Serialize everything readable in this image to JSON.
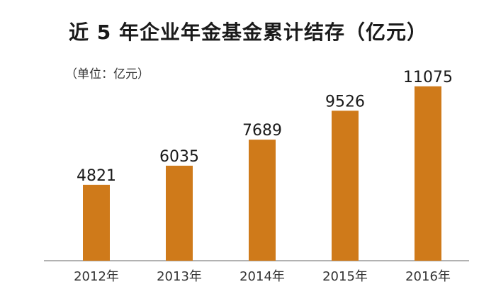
{
  "chart_data": {
    "type": "bar",
    "title": "近 5 年企业年金基金累计结存（亿元）",
    "unit_label": "（单位：亿元）",
    "categories": [
      "2012年",
      "2013年",
      "2014年",
      "2015年",
      "2016年"
    ],
    "values": [
      4821,
      6035,
      7689,
      9526,
      11075
    ],
    "data_labels": [
      "4821",
      "6035",
      "7689",
      "9526",
      "11075"
    ],
    "ylim": [
      0,
      12600
    ],
    "grid": false,
    "legend": "none",
    "bar_color": "#cf7a1a",
    "axis_color": "#999999"
  }
}
